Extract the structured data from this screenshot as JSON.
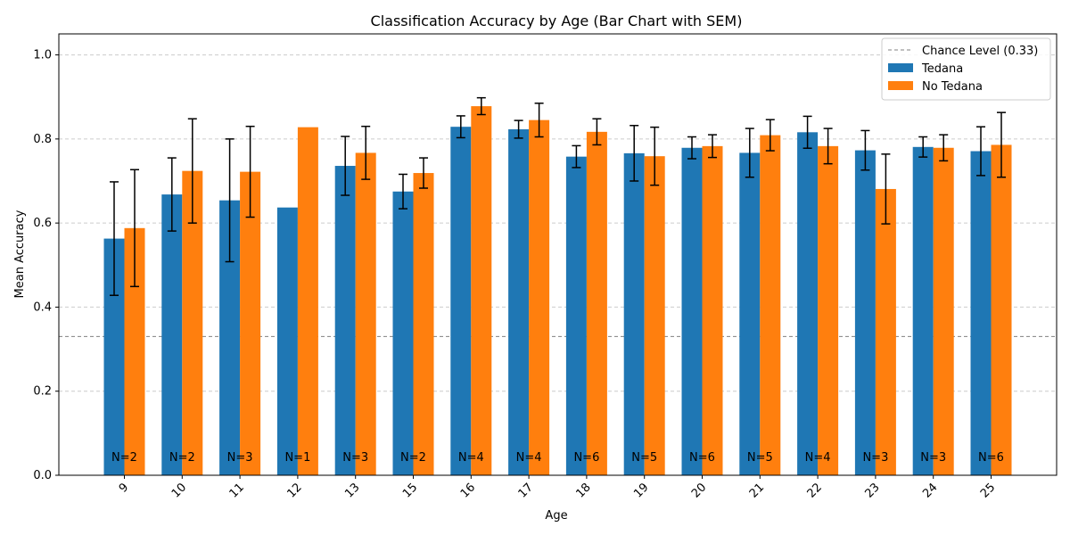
{
  "chart_data": {
    "type": "bar",
    "title": "Classification Accuracy by Age (Bar Chart with SEM)",
    "xlabel": "Age",
    "ylabel": "Mean Accuracy",
    "ylim": [
      0,
      1.05
    ],
    "yticks": [
      "0.0",
      "0.2",
      "0.4",
      "0.6",
      "0.8",
      "1.0"
    ],
    "categories": [
      "9",
      "10",
      "11",
      "12",
      "13",
      "15",
      "16",
      "17",
      "18",
      "19",
      "20",
      "21",
      "22",
      "23",
      "24",
      "25"
    ],
    "series": [
      {
        "name": "Tedana",
        "color": "#1f77b4",
        "values": [
          0.563,
          0.668,
          0.654,
          0.637,
          0.736,
          0.675,
          0.829,
          0.823,
          0.758,
          0.766,
          0.779,
          0.767,
          0.816,
          0.773,
          0.781,
          0.771
        ],
        "sem": [
          0.135,
          0.087,
          0.146,
          0.0,
          0.07,
          0.041,
          0.026,
          0.021,
          0.026,
          0.066,
          0.026,
          0.058,
          0.038,
          0.047,
          0.024,
          0.058
        ]
      },
      {
        "name": "No Tedana",
        "color": "#ff7f0e",
        "values": [
          0.588,
          0.724,
          0.722,
          0.828,
          0.767,
          0.719,
          0.878,
          0.845,
          0.817,
          0.759,
          0.783,
          0.809,
          0.783,
          0.681,
          0.779,
          0.786
        ],
        "sem": [
          0.139,
          0.124,
          0.108,
          0.0,
          0.063,
          0.036,
          0.02,
          0.04,
          0.031,
          0.069,
          0.027,
          0.037,
          0.042,
          0.083,
          0.031,
          0.077
        ]
      }
    ],
    "n_labels": [
      "N=2",
      "N=2",
      "N=3",
      "N=1",
      "N=3",
      "N=2",
      "N=4",
      "N=4",
      "N=6",
      "N=5",
      "N=6",
      "N=5",
      "N=4",
      "N=3",
      "N=3",
      "N=6"
    ],
    "reference_line": {
      "label": "Chance Level (0.33)",
      "value": 0.33,
      "color": "#808080"
    },
    "legend_entries": [
      "Chance Level (0.33)",
      "Tedana",
      "No Tedana"
    ],
    "legend_position": "top-right",
    "grid": "y-dashed"
  }
}
